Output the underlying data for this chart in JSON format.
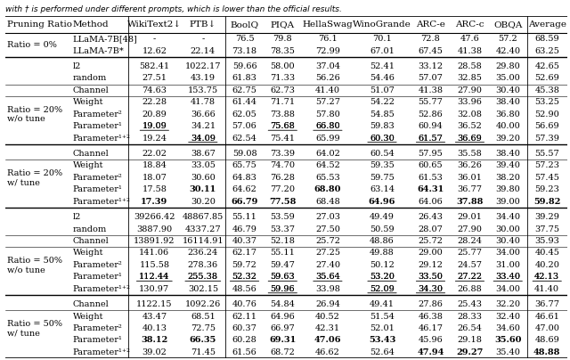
{
  "header_top": "with † is performed under different prompts, which is lower than the official results.",
  "col_headers": [
    "Pruning Ratio",
    "Method",
    "WikiText2↓",
    "PTB↓",
    "BoolQ",
    "PIQA",
    "HellaSwag",
    "WinoGrande",
    "ARC-e",
    "ARC-c",
    "OBQA",
    "Average"
  ],
  "rows": [
    {
      "group": "Ratio = 0%",
      "subrows": [
        [
          "LLaMA-7B[48]",
          "-",
          "-",
          "76.5",
          "79.8",
          "76.1",
          "70.1",
          "72.8",
          "47.6",
          "57.2",
          "68.59"
        ],
        [
          "LLaMA-7B*",
          "12.62",
          "22.14",
          "73.18",
          "78.35",
          "72.99",
          "67.01",
          "67.45",
          "41.38",
          "42.40",
          "63.25"
        ]
      ],
      "bold": [
        [],
        []
      ],
      "underline": [
        [],
        []
      ],
      "separator_after": true
    },
    {
      "group": "",
      "subrows": [
        [
          "l2",
          "582.41",
          "1022.17",
          "59.66",
          "58.00",
          "37.04",
          "52.41",
          "33.12",
          "28.58",
          "29.80",
          "42.65"
        ],
        [
          "random",
          "27.51",
          "43.19",
          "61.83",
          "71.33",
          "56.26",
          "54.46",
          "57.07",
          "32.85",
          "35.00",
          "52.69"
        ]
      ],
      "bold": [
        [],
        []
      ],
      "underline": [
        [],
        []
      ],
      "separator_after": false
    },
    {
      "group": "Ratio = 20%\nw/o tune",
      "subrows": [
        [
          "Channel",
          "74.63",
          "153.75",
          "62.75",
          "62.73",
          "41.40",
          "51.07",
          "41.38",
          "27.90",
          "30.40",
          "45.38"
        ],
        [
          "Weight",
          "22.28",
          "41.78",
          "61.44",
          "71.71",
          "57.27",
          "54.22",
          "55.77",
          "33.96",
          "38.40",
          "53.25"
        ],
        [
          "Parameter²",
          "20.89",
          "36.66",
          "62.05",
          "73.88",
          "57.80",
          "54.85",
          "52.86",
          "32.08",
          "36.80",
          "52.90"
        ],
        [
          "Parameter¹",
          "19.09",
          "34.21",
          "57.06",
          "75.68",
          "66.80",
          "59.83",
          "60.94",
          "36.52",
          "40.00",
          "56.69"
        ],
        [
          "Parameter¹⁺²",
          "19.24",
          "34.09",
          "62.54",
          "75.41",
          "65.99",
          "60.30",
          "61.57",
          "36.69",
          "39.20",
          "57.39"
        ]
      ],
      "bold": [
        [],
        [],
        [],
        [],
        [
          "40.00"
        ],
        []
      ],
      "underline": [
        [],
        [],
        [],
        [
          "19.09",
          "75.68",
          "66.80"
        ],
        [
          "34.09",
          "60.30",
          "61.57",
          "36.69"
        ]
      ],
      "separator_after": true
    },
    {
      "group": "Ratio = 20%\nw/ tune",
      "subrows": [
        [
          "Channel",
          "22.02",
          "38.67",
          "59.08",
          "73.39",
          "64.02",
          "60.54",
          "57.95",
          "35.58",
          "38.40",
          "55.57"
        ],
        [
          "Weight",
          "18.84",
          "33.05",
          "65.75",
          "74.70",
          "64.52",
          "59.35",
          "60.65",
          "36.26",
          "39.40",
          "57.23"
        ],
        [
          "Parameter²",
          "18.07",
          "30.60",
          "64.83",
          "76.28",
          "65.53",
          "59.75",
          "61.53",
          "36.01",
          "38.20",
          "57.45"
        ],
        [
          "Parameter¹",
          "17.58",
          "30.11",
          "64.62",
          "77.20",
          "68.80",
          "63.14",
          "64.31",
          "36.77",
          "39.80",
          "59.23"
        ],
        [
          "Parameter¹⁺²",
          "17.39",
          "30.20",
          "66.79",
          "77.58",
          "68.48",
          "64.96",
          "64.06",
          "37.88",
          "39.00",
          "59.82"
        ]
      ],
      "bold": [
        [],
        [],
        [],
        [
          "30.11",
          "68.80",
          "64.31"
        ],
        [
          "17.39",
          "66.79",
          "77.58",
          "64.96",
          "37.88",
          "59.82"
        ]
      ],
      "underline": [
        [],
        [],
        [],
        [],
        []
      ],
      "separator_after": true
    },
    {
      "group": "",
      "subrows": [
        [
          "l2",
          "39266.42",
          "48867.85",
          "55.11",
          "53.59",
          "27.03",
          "49.49",
          "26.43",
          "29.01",
          "34.40",
          "39.29"
        ],
        [
          "random",
          "3887.90",
          "4337.27",
          "46.79",
          "53.37",
          "27.50",
          "50.59",
          "28.07",
          "27.90",
          "30.00",
          "37.75"
        ]
      ],
      "bold": [
        [],
        []
      ],
      "underline": [
        [],
        []
      ],
      "separator_after": false
    },
    {
      "group": "Ratio = 50%\nw/o tune",
      "subrows": [
        [
          "Channel",
          "13891.92",
          "16114.91",
          "40.37",
          "52.18",
          "25.72",
          "48.86",
          "25.72",
          "28.24",
          "30.40",
          "35.93"
        ],
        [
          "Weight",
          "141.06",
          "236.24",
          "62.17",
          "55.11",
          "27.25",
          "49.88",
          "29.00",
          "25.77",
          "34.00",
          "40.45"
        ],
        [
          "Parameter²",
          "115.58",
          "278.36",
          "59.72",
          "59.47",
          "27.40",
          "50.12",
          "29.12",
          "24.57",
          "31.00",
          "40.20"
        ],
        [
          "Parameter¹",
          "112.44",
          "255.38",
          "52.32",
          "59.63",
          "35.64",
          "53.20",
          "33.50",
          "27.22",
          "33.40",
          "42.13"
        ],
        [
          "Parameter¹⁺²",
          "130.97",
          "302.15",
          "48.56",
          "59.96",
          "33.98",
          "52.09",
          "34.30",
          "26.88",
          "34.00",
          "41.40"
        ]
      ],
      "bold": [
        [],
        [],
        [],
        [],
        []
      ],
      "underline": [
        [],
        [],
        [],
        [
          "112.44",
          "255.38",
          "52.32",
          "59.63",
          "35.64",
          "53.20",
          "33.50",
          "27.22",
          "33.40",
          "42.13"
        ],
        [
          "59.96",
          "52.09",
          "34.30"
        ]
      ],
      "separator_after": true
    },
    {
      "group": "Ratio = 50%\nw/ tune",
      "subrows": [
        [
          "Channel",
          "1122.15",
          "1092.26",
          "40.76",
          "54.84",
          "26.94",
          "49.41",
          "27.86",
          "25.43",
          "32.20",
          "36.77"
        ],
        [
          "Weight",
          "43.47",
          "68.51",
          "62.11",
          "64.96",
          "40.52",
          "51.54",
          "46.38",
          "28.33",
          "32.40",
          "46.61"
        ],
        [
          "Parameter²",
          "40.13",
          "72.75",
          "60.37",
          "66.97",
          "42.31",
          "52.01",
          "46.17",
          "26.54",
          "34.60",
          "47.00"
        ],
        [
          "Parameter¹",
          "38.12",
          "66.35",
          "60.28",
          "69.31",
          "47.06",
          "53.43",
          "45.96",
          "29.18",
          "35.60",
          "48.69"
        ],
        [
          "Parameter¹⁺²",
          "39.02",
          "71.45",
          "61.56",
          "68.72",
          "46.62",
          "52.64",
          "47.94",
          "29.27",
          "35.40",
          "48.88"
        ]
      ],
      "bold": [
        [],
        [],
        [],
        [
          "38.12",
          "66.35",
          "69.31",
          "47.06",
          "53.43",
          "35.60"
        ],
        [
          "62.11",
          "47.94",
          "29.27",
          "48.88"
        ]
      ],
      "underline": [
        [],
        [],
        [],
        [],
        []
      ],
      "separator_after": false
    }
  ],
  "background_color": "#ffffff",
  "header_fontsize": 7.5,
  "cell_fontsize": 7.0
}
